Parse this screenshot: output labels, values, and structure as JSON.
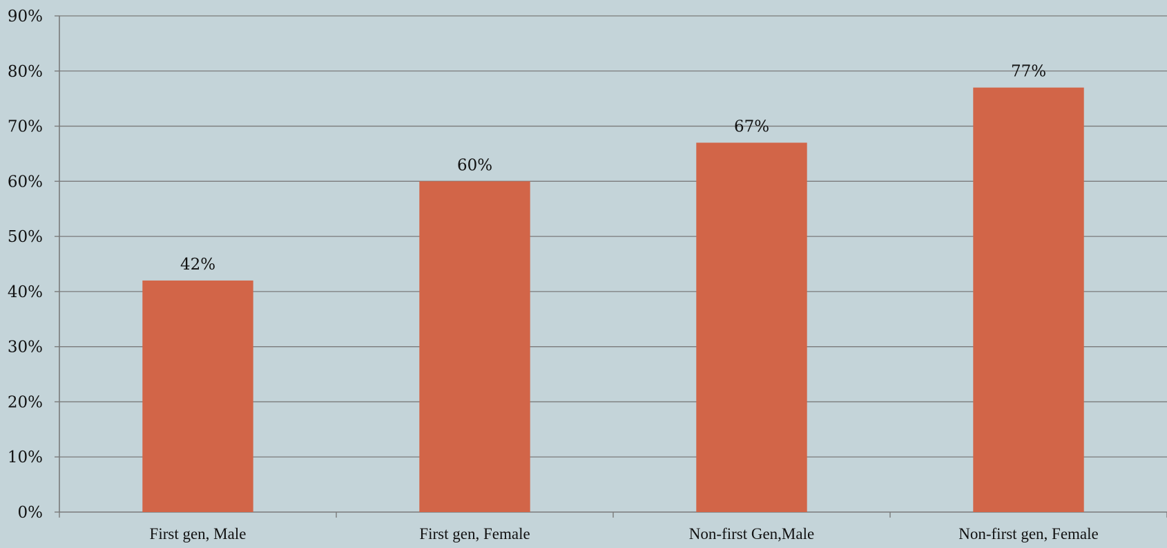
{
  "chart_data": {
    "type": "bar",
    "categories": [
      "First gen, Male",
      "First gen, Female",
      "Non-first Gen,Male",
      "Non-first gen, Female"
    ],
    "series": [
      {
        "values": [
          42,
          60,
          67,
          77
        ],
        "color": "#d26548",
        "data_labels": [
          "42%",
          "60%",
          "67%",
          "77%"
        ]
      }
    ],
    "ylim": [
      0,
      90
    ],
    "y_ticks": [
      {
        "value": 0,
        "label": "0%"
      },
      {
        "value": 10,
        "label": "10%"
      },
      {
        "value": 20,
        "label": "20%"
      },
      {
        "value": 30,
        "label": "30%"
      },
      {
        "value": 40,
        "label": "40%"
      },
      {
        "value": 50,
        "label": "50%"
      },
      {
        "value": 60,
        "label": "60%"
      },
      {
        "value": 70,
        "label": "70%"
      },
      {
        "value": 80,
        "label": "80%"
      },
      {
        "value": 90,
        "label": "90%"
      }
    ],
    "grid": true,
    "legend": "none",
    "background": "#c4d4d9"
  }
}
